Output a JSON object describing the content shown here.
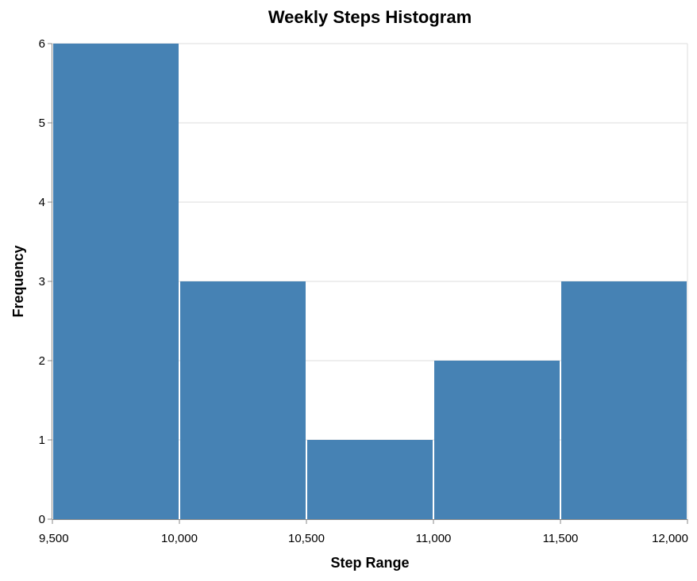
{
  "chart_data": {
    "type": "bar",
    "title": "Weekly Steps Histogram",
    "xlabel": "Step Range",
    "ylabel": "Frequency",
    "bins": [
      {
        "start": 9500,
        "end": 10000,
        "count": 6
      },
      {
        "start": 10000,
        "end": 10500,
        "count": 3
      },
      {
        "start": 10500,
        "end": 11000,
        "count": 1
      },
      {
        "start": 11000,
        "end": 11500,
        "count": 2
      },
      {
        "start": 11500,
        "end": 12000,
        "count": 3
      }
    ],
    "xlim": [
      9500,
      12000
    ],
    "ylim": [
      0,
      6
    ],
    "x_ticks": [
      9500,
      10000,
      10500,
      11000,
      11500,
      12000
    ],
    "x_tick_labels": [
      "9,500",
      "10,000",
      "10,500",
      "11,000",
      "11,500",
      "12,000"
    ],
    "y_ticks": [
      0,
      1,
      2,
      3,
      4,
      5,
      6
    ],
    "y_tick_labels": [
      "0",
      "1",
      "2",
      "3",
      "4",
      "5",
      "6"
    ],
    "grid": true,
    "bar_color": "#4682b4",
    "grid_color": "#dddddd",
    "axis_color": "#888888"
  }
}
